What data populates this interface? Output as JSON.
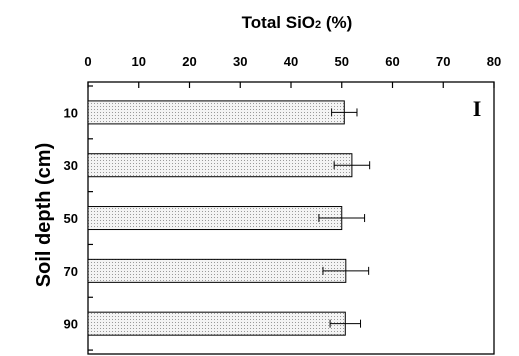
{
  "chart_data": {
    "type": "bar",
    "orientation": "horizontal",
    "title": "",
    "xlabel_main": "Total SiO",
    "xlabel_sub": "2",
    "xlabel_tail": " (%)",
    "ylabel": "Soil depth (cm)",
    "categories": [
      "10",
      "30",
      "50",
      "70",
      "90"
    ],
    "values": [
      50.5,
      52,
      50,
      50.8,
      50.7
    ],
    "errors": [
      2.5,
      3.5,
      4.5,
      4.5,
      3.0
    ],
    "xlim": [
      0,
      80
    ],
    "xticks": [
      "0",
      "10",
      "20",
      "30",
      "40",
      "50",
      "60",
      "70",
      "80"
    ],
    "xaxis_position": "top",
    "legend_marker": "I",
    "grid": false,
    "bar_fill": "#e6e6e6"
  }
}
